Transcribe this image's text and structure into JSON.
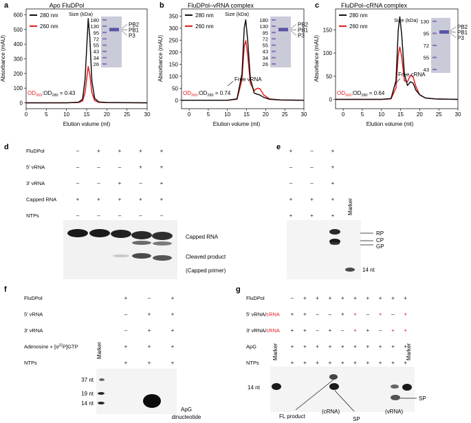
{
  "colors": {
    "c280": "#111111",
    "c260": "#e41a1c",
    "gel": "#c9cbd8",
    "blot": "#f4f4f4",
    "ink": "#111111",
    "red": "#e41a1c"
  },
  "chart_data": [
    {
      "panel": "a",
      "type": "line",
      "title": "Apo FluDPol",
      "xlabel": "Elution volume (ml)",
      "ylabel": "Absorbance (mAU)",
      "xlim": [
        0,
        30
      ],
      "ylim": [
        -40,
        640
      ],
      "xticks": [
        "0",
        "5",
        "10",
        "15",
        "20",
        "25",
        "30"
      ],
      "yticks": [
        "0",
        "100",
        "200",
        "300",
        "400",
        "500",
        "600"
      ],
      "yvals": [
        0,
        100,
        200,
        300,
        400,
        500,
        600
      ],
      "legend": [
        "280 nm",
        "260 nm"
      ],
      "size_label": "Size (kDa)",
      "size_markers": [
        "180",
        "130",
        "95",
        "72",
        "55",
        "43",
        "34",
        "26"
      ],
      "bands": [
        "PB2",
        "PB1",
        "P3"
      ],
      "od_note": {
        "a": "OD",
        "a_sub": "260",
        "b": ":OD",
        "b_sub": "280",
        "val": " = 0.43"
      },
      "series": [
        {
          "name": "280 nm",
          "x": [
            0,
            10,
            13,
            14,
            14.6,
            15.1,
            15.4,
            15.8,
            16.3,
            17.0,
            18.0,
            20.0,
            30.0
          ],
          "y": [
            0,
            0,
            4,
            25,
            160,
            420,
            575,
            440,
            150,
            30,
            6,
            2,
            0
          ]
        },
        {
          "name": "260 nm",
          "x": [
            0,
            10,
            13,
            14,
            14.6,
            15.1,
            15.4,
            15.8,
            16.3,
            17.0,
            18.0,
            20.0,
            30.0
          ],
          "y": [
            0,
            0,
            2,
            12,
            70,
            185,
            248,
            190,
            70,
            15,
            3,
            1,
            0
          ]
        }
      ]
    },
    {
      "panel": "b",
      "type": "line",
      "title": "FluDPol–vRNA complex",
      "xlabel": "Elution volume (ml)",
      "ylabel": "Absorbance (mAU)",
      "xlim": [
        -2,
        30
      ],
      "ylim": [
        -35,
        380
      ],
      "xticks": [
        "0",
        "5",
        "10",
        "15",
        "20",
        "25",
        "30"
      ],
      "yticks": [
        "0",
        "50",
        "100",
        "150",
        "200",
        "250",
        "300",
        "350"
      ],
      "yvals": [
        0,
        50,
        100,
        150,
        200,
        250,
        300,
        350
      ],
      "legend": [
        "280 nm",
        "260 nm"
      ],
      "size_label": "Size (kDa)",
      "size_markers": [
        "180",
        "130",
        "95",
        "72",
        "55",
        "43",
        "34",
        "26"
      ],
      "bands": [
        "PB2",
        "PB1",
        "P3"
      ],
      "annotation": "Free vRNA",
      "od_note": {
        "a": "OD",
        "a_sub": "260",
        "b": ":OD",
        "b_sub": "280",
        "val": " = 0.74"
      },
      "series": [
        {
          "name": "280 nm",
          "x": [
            -2,
            10,
            12.5,
            13.8,
            14.4,
            14.8,
            15.3,
            16.0,
            17.0,
            17.8,
            18.5,
            19.5,
            21.0,
            24.0,
            30.0
          ],
          "y": [
            0,
            0,
            6,
            110,
            300,
            335,
            250,
            90,
            30,
            25,
            22,
            12,
            4,
            1,
            0
          ]
        },
        {
          "name": "260 nm",
          "x": [
            -2,
            10,
            12.5,
            13.8,
            14.4,
            14.8,
            15.3,
            16.0,
            17.0,
            17.8,
            18.5,
            19.5,
            21.0,
            24.0,
            30.0
          ],
          "y": [
            0,
            0,
            4,
            85,
            225,
            248,
            190,
            70,
            40,
            50,
            48,
            22,
            6,
            1,
            0
          ]
        }
      ]
    },
    {
      "panel": "c",
      "type": "line",
      "title": "FluDPol–cRNA complex",
      "xlabel": "Elution volume (ml)",
      "ylabel": "Absorbance (mAU)",
      "xlim": [
        -2,
        30
      ],
      "ylim": [
        -20,
        195
      ],
      "xticks": [
        "0",
        "5",
        "10",
        "15",
        "20",
        "25",
        "30"
      ],
      "yticks": [
        "0",
        "50",
        "100",
        "150"
      ],
      "yvals": [
        0,
        50,
        100,
        150
      ],
      "legend": [
        "280 nm",
        "260 nm"
      ],
      "size_label": "Size (kDa)",
      "size_markers": [
        "130",
        "95",
        "72",
        "55",
        "43"
      ],
      "bands": [
        "PB2",
        "PB1",
        "P3"
      ],
      "annotation": "Free cRNA",
      "od_note": {
        "a": "OD",
        "a_sub": "260",
        "b": ":OD",
        "b_sub": "280",
        "val": " = 0.64"
      },
      "series": [
        {
          "name": "280 nm",
          "x": [
            -2,
            10,
            12.5,
            13.8,
            14.4,
            14.8,
            15.3,
            16.0,
            16.8,
            17.6,
            18.3,
            19.0,
            20.0,
            21.5,
            24.0,
            30.0
          ],
          "y": [
            0,
            0,
            2,
            40,
            150,
            178,
            140,
            55,
            30,
            38,
            35,
            20,
            10,
            3,
            1,
            0
          ]
        },
        {
          "name": "260 nm",
          "x": [
            -2,
            10,
            12.5,
            13.8,
            14.4,
            14.8,
            15.3,
            16.0,
            16.8,
            17.6,
            18.3,
            19.0,
            20.0,
            21.5,
            24.0,
            30.0
          ],
          "y": [
            0,
            0,
            1,
            25,
            95,
            113,
            92,
            40,
            38,
            52,
            48,
            28,
            10,
            3,
            1,
            0
          ]
        }
      ]
    }
  ],
  "panel_d": {
    "letter": "d",
    "rows": [
      {
        "label": "FluDPol",
        "vals": [
          "–",
          "+",
          "+",
          "+",
          "+"
        ]
      },
      {
        "label": "5′ vRNA",
        "vals": [
          "–",
          "–",
          "–",
          "+",
          "+"
        ]
      },
      {
        "label": "3′ vRNA",
        "vals": [
          "–",
          "–",
          "+",
          "–",
          "+"
        ]
      },
      {
        "label": "Capped RNA",
        "vals": [
          "+",
          "+",
          "+",
          "+",
          "+"
        ]
      },
      {
        "label": "NTPs",
        "vals": [
          "–",
          "–",
          "–",
          "–",
          "–"
        ]
      }
    ],
    "labels": {
      "capped": "Capped RNA",
      "cleaved": "Cleaved product",
      "primer": "(Capped primer)"
    }
  },
  "panel_e": {
    "letter": "e",
    "rows": [
      [
        "+",
        "–",
        "+"
      ],
      [
        "–",
        "–",
        "+"
      ],
      [
        "–",
        "–",
        "+"
      ],
      [
        "+",
        "+",
        "+"
      ],
      [
        "+",
        "+",
        "+"
      ]
    ],
    "marker": "Marker",
    "labels": {
      "rp": "RP",
      "cp": "CP",
      "gp": "GP",
      "nt": "14 nt"
    }
  },
  "panel_f": {
    "letter": "f",
    "rows": [
      {
        "label": "FluDPol",
        "vals": [
          "+",
          "–",
          "+"
        ]
      },
      {
        "label": "5′ vRNA",
        "vals": [
          "–",
          "+",
          "+"
        ]
      },
      {
        "label": "3′ vRNA",
        "vals": [
          "–",
          "+",
          "+"
        ]
      },
      {
        "label": "Adenosine + [α",
        "sup": "32",
        "label2": "P]GTP",
        "vals": [
          "+",
          "+",
          "+"
        ]
      },
      {
        "label": "NTPs",
        "vals": [
          "+",
          "+",
          "+"
        ]
      }
    ],
    "marker": "Marker",
    "sizes": [
      "37 nt",
      "19 nt",
      "14 nt"
    ],
    "product": [
      "ApG",
      "dinucleotide"
    ]
  },
  "panel_g": {
    "letter": "g",
    "rows": [
      {
        "label": "FluDPol",
        "vals": [
          "–",
          "+",
          "+",
          "+",
          "+",
          "+",
          "+",
          "+",
          "+",
          "+"
        ],
        "red": []
      },
      {
        "label_a": "5′ vRNA/",
        "label_b": "cRNA",
        "vals": [
          "+",
          "+",
          "–",
          "–",
          "+",
          "+",
          "–",
          "+",
          "–",
          "+"
        ],
        "red": [
          5,
          7,
          9
        ]
      },
      {
        "label_a": "3′ vRNA/",
        "label_b": "cRNA",
        "vals": [
          "+",
          "+",
          "–",
          "+",
          "–",
          "+",
          "+",
          "–",
          "+",
          "+"
        ],
        "red": [
          5,
          8,
          9
        ]
      },
      {
        "label": "ApG",
        "vals": [
          "+",
          "+",
          "+",
          "+",
          "+",
          "+",
          "+",
          "+",
          "+",
          "+"
        ],
        "red": []
      },
      {
        "label": "NTPs",
        "vals": [
          "+",
          "+",
          "+",
          "+",
          "+",
          "+",
          "+",
          "+",
          "+",
          "+"
        ],
        "red": []
      }
    ],
    "marker": "Marker",
    "labels": {
      "nt": "14 nt",
      "fl": "FL product",
      "crna": "(cRNA)",
      "vrna": "(vRNA)",
      "sp": "SP",
      "sp2": "SP"
    }
  }
}
